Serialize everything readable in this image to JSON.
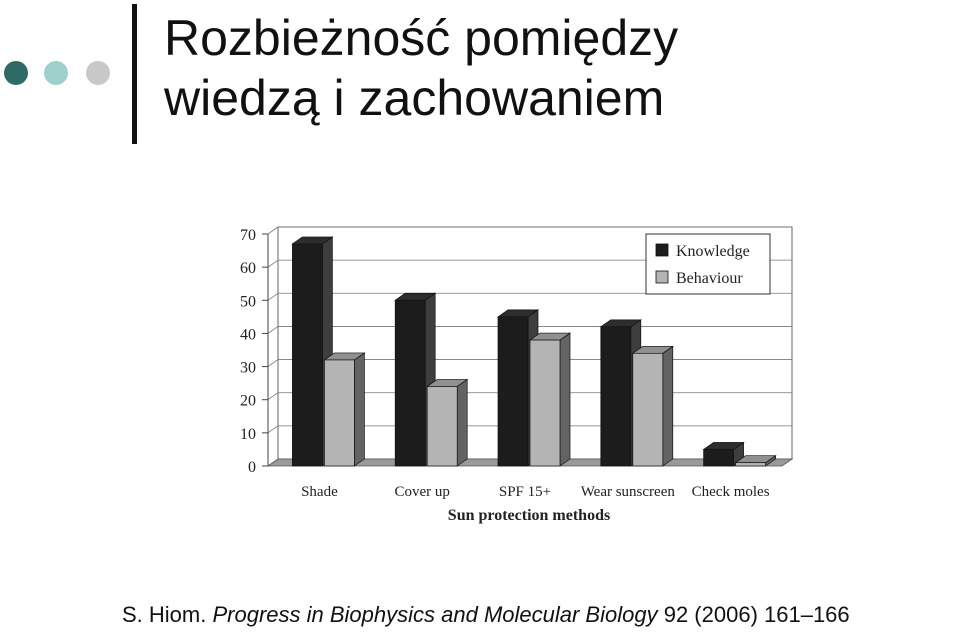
{
  "slide": {
    "title_line1": "Rozbieżność pomiędzy",
    "title_line2": "wiedzą i zachowaniem",
    "decor_dots": [
      "#2f6b66",
      "#9fcfcb",
      "#c8c8c8"
    ]
  },
  "citation": {
    "author": "S. Hiom.",
    "journal": "Progress in Biophysics and Molecular Biology",
    "details": "92 (2006) 161–166"
  },
  "chart_data": {
    "type": "bar",
    "title": "",
    "xlabel": "Sun protection methods",
    "ylabel": "",
    "categories": [
      "Shade",
      "Cover up",
      "SPF 15+",
      "Wear sunscreen",
      "Check moles"
    ],
    "series": [
      {
        "name": "Knowledge",
        "values": [
          67,
          50,
          45,
          42,
          5
        ],
        "color": "#1c1c1c"
      },
      {
        "name": "Behaviour",
        "values": [
          32,
          24,
          38,
          34,
          1
        ],
        "color": "#b4b4b4"
      }
    ],
    "ylim": [
      0,
      70
    ],
    "yticks": [
      0,
      10,
      20,
      30,
      40,
      50,
      60,
      70
    ],
    "grid": true,
    "legend_position": "top-right",
    "style": "3d"
  }
}
